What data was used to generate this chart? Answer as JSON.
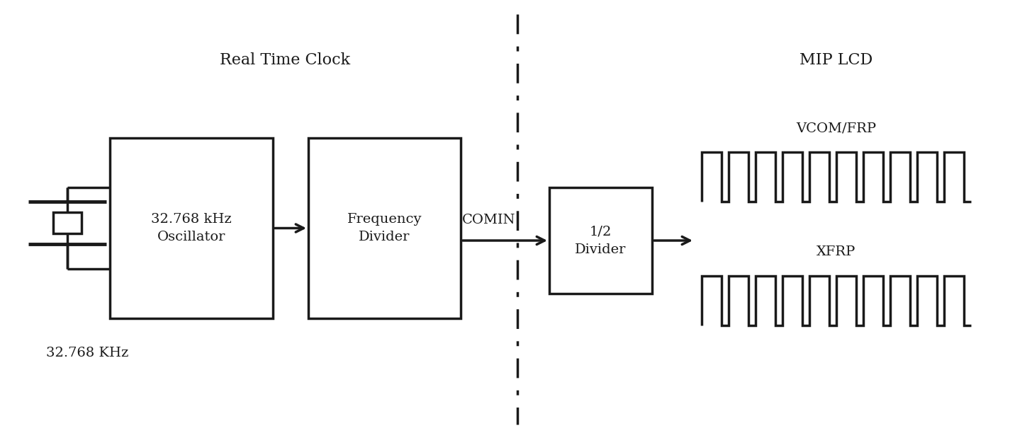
{
  "bg_color": "#ffffff",
  "line_color": "#1a1a1a",
  "title_rtc": "Real Time Clock",
  "title_mip": "MIP LCD",
  "label_osc": "32.768 kHz\nOscillator",
  "label_freq": "Frequency\nDivider",
  "label_half": "1/2\nDivider",
  "label_comin": "COMIN",
  "label_xtal_freq": "32.768 KHz",
  "label_vcom": "VCOM/FRP",
  "label_xfrp": "XFRP",
  "figsize": [
    14.25,
    6.29
  ],
  "dpi": 100
}
